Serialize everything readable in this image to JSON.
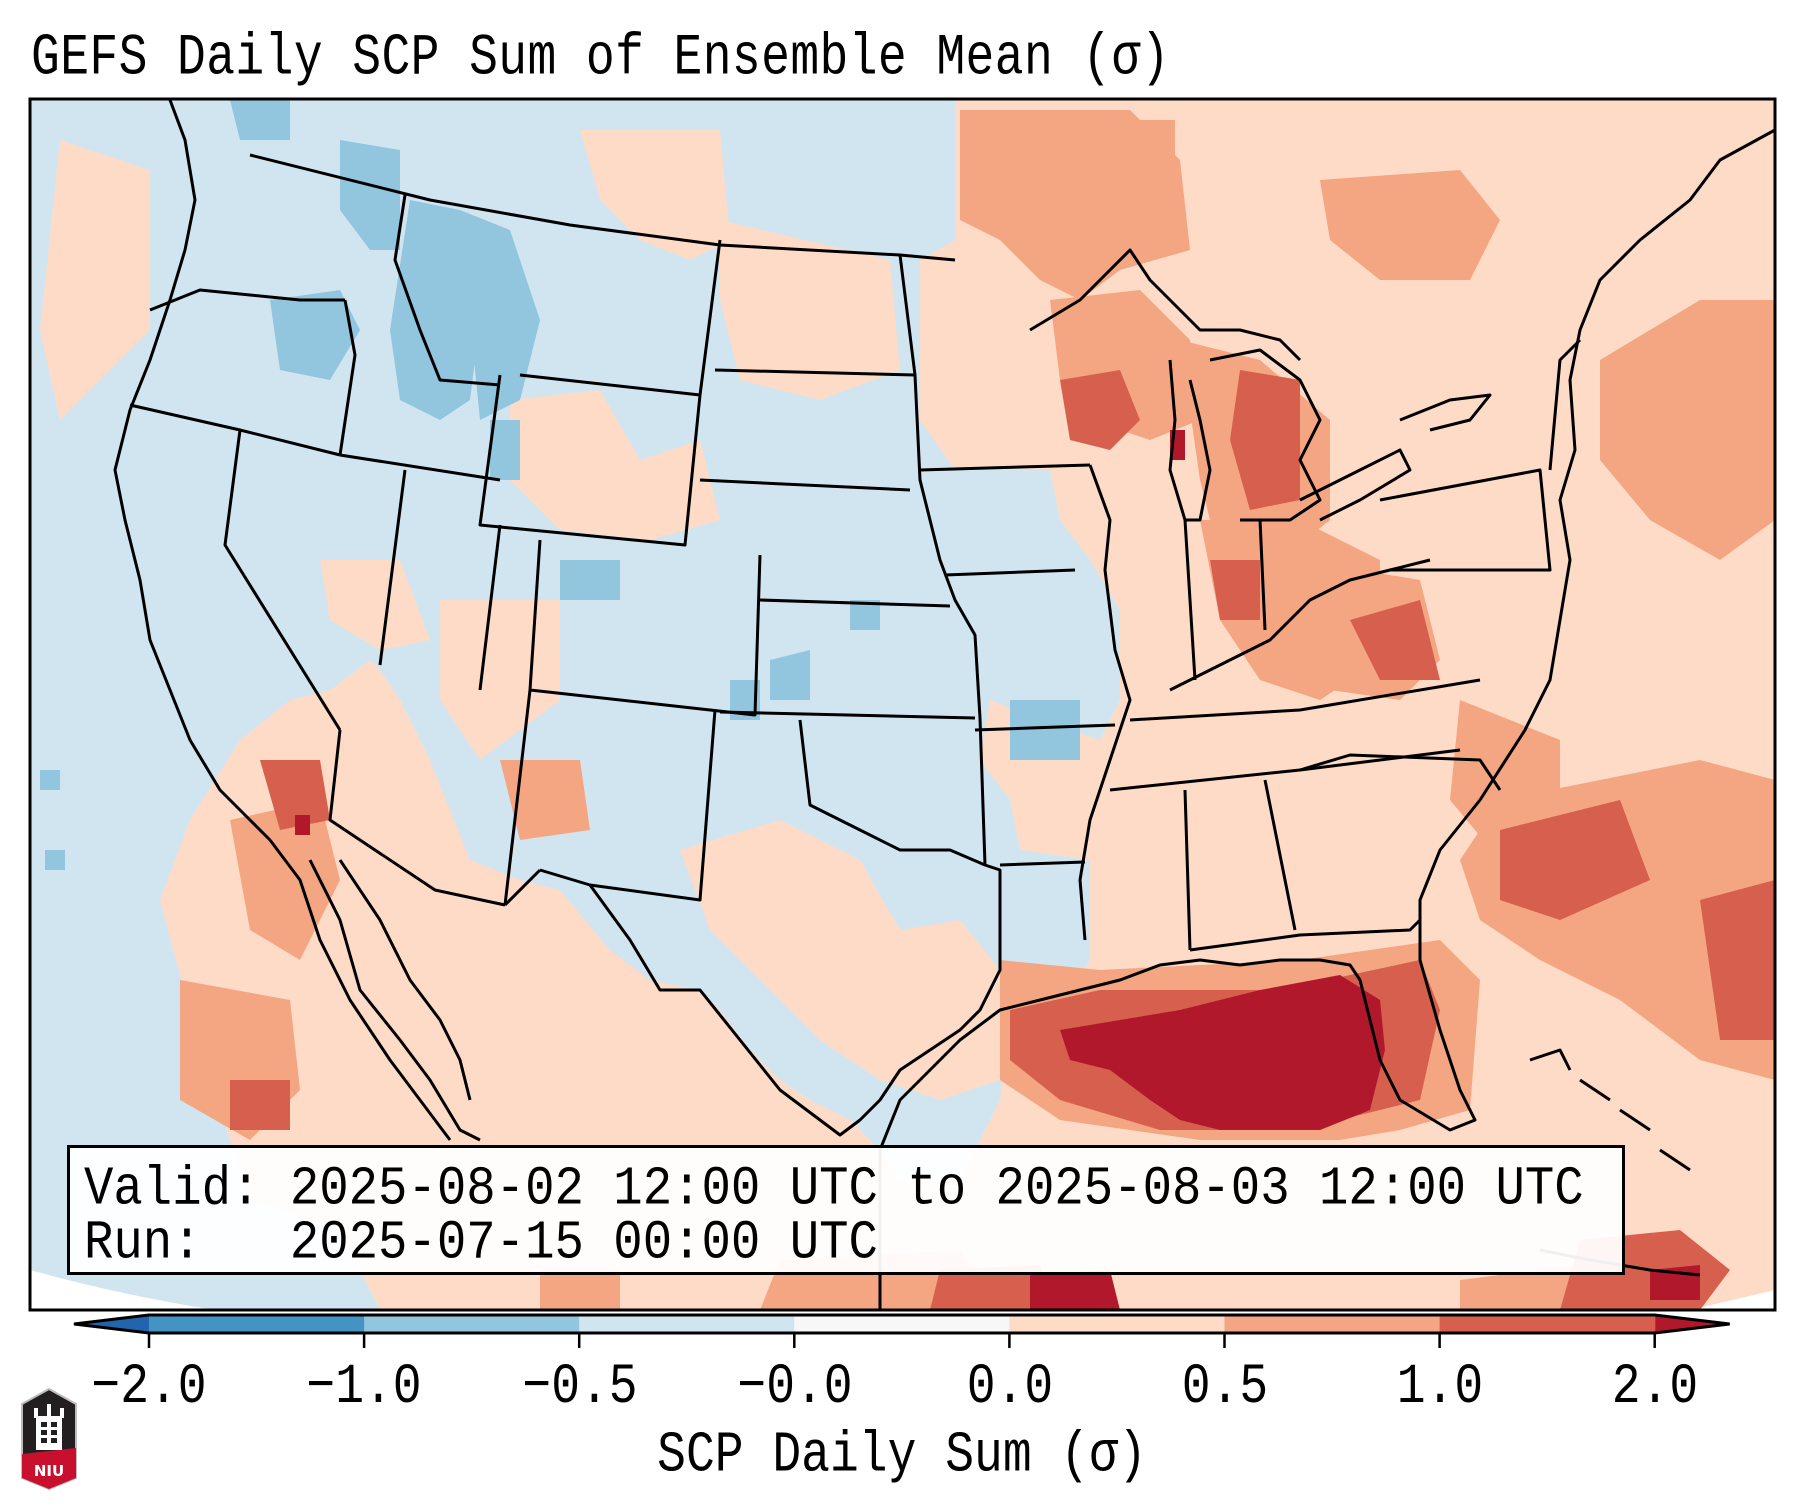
{
  "title": "GEFS Daily SCP Sum of Ensemble Mean (σ)",
  "legend": {
    "valid_label": "Valid:",
    "valid_text": "2025-08-02 12:00 UTC to 2025-08-03 12:00 UTC",
    "run_label": "Run:",
    "run_text": "2025-07-15 00:00 UTC"
  },
  "colorbar": {
    "label": "SCP Daily Sum (σ)",
    "tick_labels": [
      "−2.0",
      "−1.0",
      "−0.5",
      "−0.0",
      "0.0",
      "0.5",
      "1.0",
      "2.0"
    ],
    "bins": [
      {
        "from": -2.0,
        "to": -1.0,
        "color": "#4393c3"
      },
      {
        "from": -1.0,
        "to": -0.5,
        "color": "#92c5de"
      },
      {
        "from": -0.5,
        "to": -0.0,
        "color": "#d1e5f0"
      },
      {
        "from": -0.0,
        "to": 0.0,
        "color": "#f7f7f7"
      },
      {
        "from": 0.0,
        "to": 0.5,
        "color": "#fddbc7"
      },
      {
        "from": 0.5,
        "to": 1.0,
        "color": "#f4a582"
      },
      {
        "from": 1.0,
        "to": 2.0,
        "color": "#d6604d"
      }
    ],
    "under_color": "#2166ac",
    "over_color": "#b2182b",
    "extend": "both"
  },
  "map": {
    "projection": "Lambert Conformal (CONUS)",
    "ocean_color": "#d1e5f0"
  },
  "logo": {
    "text": "NIU",
    "colors": {
      "shield": "#231f20",
      "band": "#c8102e"
    }
  }
}
